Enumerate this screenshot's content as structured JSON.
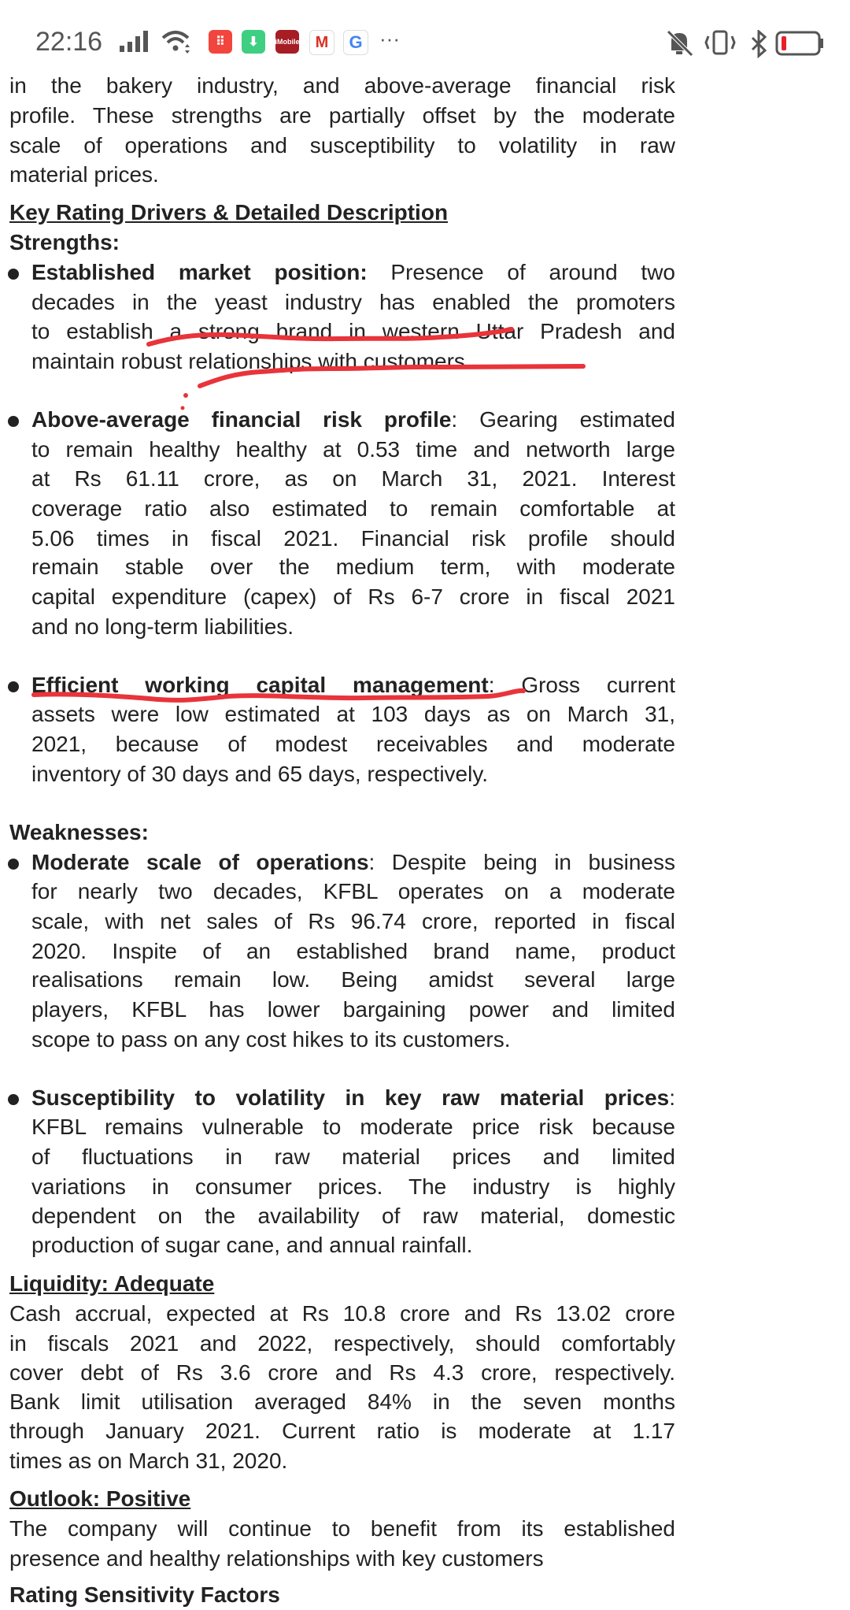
{
  "status_bar": {
    "time": "22:16",
    "left_icons": [
      "signal-icon",
      "wifi-icon",
      "calculator-app-icon",
      "download-app-icon",
      "icici-app-icon",
      "gmail-icon",
      "google-icon",
      "more-notifications-icon"
    ],
    "more": "···",
    "right_icons": [
      "mute-icon",
      "vibrate-icon",
      "bluetooth-icon",
      "battery-low-icon"
    ],
    "battery_color": "#e8202a"
  },
  "document": {
    "lines": [
      {
        "kind": "text",
        "text": "in the bakery industry, and above-average financial risk",
        "justify": true
      },
      {
        "kind": "text",
        "text": "profile. These strengths are partially offset by the moderate",
        "justify": true
      },
      {
        "kind": "text",
        "text": "scale of operations and susceptibility to volatility in raw",
        "justify": true
      },
      {
        "kind": "text",
        "text": "material prices."
      },
      {
        "kind": "heading",
        "text": "Key Rating Drivers & Detailed Description"
      },
      {
        "kind": "bold",
        "text": "Strengths:"
      },
      {
        "kind": "bullet",
        "bold": "Established market position:",
        "text": " Presence of around two",
        "justify": true
      },
      {
        "kind": "indent",
        "text": "decades in the yeast industry has enabled the promoters",
        "justify": true
      },
      {
        "kind": "indent",
        "text": "to establish a strong brand in western Uttar Pradesh and",
        "justify": true
      },
      {
        "kind": "indent",
        "text": "maintain robust relationships with customers."
      },
      {
        "kind": "bullet",
        "bold": "Above-average financial risk profile",
        "text": ": Gearing estimated",
        "justify": true
      },
      {
        "kind": "indent",
        "text": "to remain healthy healthy at 0.53 time and networth large",
        "justify": true
      },
      {
        "kind": "indent",
        "text": "at Rs 61.11 crore, as on March 31, 2021. Interest",
        "justify": true
      },
      {
        "kind": "indent",
        "text": "coverage ratio also estimated to remain comfortable at",
        "justify": true
      },
      {
        "kind": "indent",
        "text": "5.06 times in fiscal 2021. Financial risk profile should",
        "justify": true
      },
      {
        "kind": "indent",
        "text": "remain stable over the medium term, with moderate",
        "justify": true
      },
      {
        "kind": "indent",
        "text": "capital expenditure (capex) of Rs 6-7 crore in fiscal 2021",
        "justify": true
      },
      {
        "kind": "indent",
        "text": "and no long-term liabilities."
      },
      {
        "kind": "bullet",
        "bold": "Efficient working capital management",
        "text": ": Gross current",
        "justify": true
      },
      {
        "kind": "indent",
        "text": "assets were low estimated at 103 days as on March 31,",
        "justify": true
      },
      {
        "kind": "indent",
        "text": "2021, because of modest receivables and moderate",
        "justify": true
      },
      {
        "kind": "indent",
        "text": "inventory of 30 days and 65 days, respectively."
      },
      {
        "kind": "bold",
        "text": "Weaknesses:"
      },
      {
        "kind": "bullet",
        "bold": "Moderate scale of operations",
        "text": ": Despite being in business",
        "justify": true
      },
      {
        "kind": "indent",
        "text": "for nearly two decades, KFBL operates on a moderate",
        "justify": true
      },
      {
        "kind": "indent",
        "text": "scale, with net sales of Rs 96.74 crore, reported in fiscal",
        "justify": true
      },
      {
        "kind": "indent",
        "text": "2020. Inspite of an established brand name, product",
        "justify": true
      },
      {
        "kind": "indent",
        "text": "realisations remain low. Being amidst several large",
        "justify": true
      },
      {
        "kind": "indent",
        "text": "players, KFBL has lower bargaining power and limited",
        "justify": true
      },
      {
        "kind": "indent",
        "text": "scope to pass on any cost hikes to its customers."
      },
      {
        "kind": "bullet",
        "bold": "Susceptibility to volatility in key raw material prices",
        "text": ":",
        "justify": true
      },
      {
        "kind": "indent",
        "text": "KFBL remains vulnerable to moderate price risk because",
        "justify": true
      },
      {
        "kind": "indent",
        "text": "of fluctuations in raw material prices and limited",
        "justify": true
      },
      {
        "kind": "indent",
        "text": "variations in consumer prices. The industry is highly",
        "justify": true
      },
      {
        "kind": "indent",
        "text": "dependent on the availability of raw material, domestic",
        "justify": true
      },
      {
        "kind": "indent",
        "text": "production of sugar cane, and annual rainfall."
      },
      {
        "kind": "heading",
        "text": "Liquidity: Adequate"
      },
      {
        "kind": "text",
        "text": "Cash accrual, expected at Rs 10.8 crore and Rs 13.02 crore",
        "justify": true
      },
      {
        "kind": "text",
        "text": "in fiscals 2021 and 2022, respectively, should comfortably",
        "justify": true
      },
      {
        "kind": "text",
        "text": "cover debt of Rs 3.6 crore and Rs 4.3 crore, respectively.",
        "justify": true
      },
      {
        "kind": "text",
        "text": "Bank limit utilisation averaged 84% in the seven months",
        "justify": true
      },
      {
        "kind": "text",
        "text": "through January 2021. Current ratio is moderate at 1.17",
        "justify": true
      },
      {
        "kind": "text",
        "text": "times as on March 31, 2020."
      },
      {
        "kind": "heading",
        "text": "Outlook: Positive"
      },
      {
        "kind": "text",
        "text": "The company will continue to benefit from its established",
        "justify": true
      },
      {
        "kind": "text",
        "text": "presence and healthy relationships with key customers"
      },
      {
        "kind": "bold",
        "text": "Rating Sensitivity Factors"
      }
    ]
  },
  "annotation_color": "#e8343a"
}
